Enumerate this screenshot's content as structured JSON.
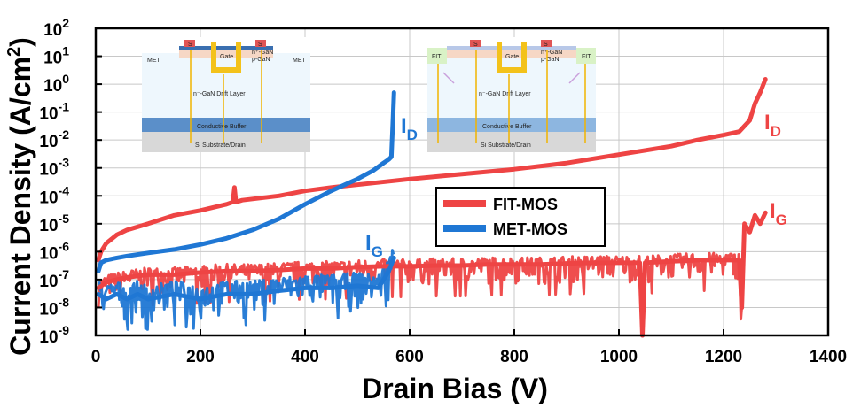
{
  "chart_data": {
    "type": "line",
    "title": "",
    "xlabel": "Drain Bias (V)",
    "ylabel_main": "Current Density (A/cm",
    "ylabel_sup": "2",
    "ylabel_close": ")",
    "xlim": [
      0,
      1400
    ],
    "ylim_log10": [
      -9,
      2
    ],
    "y_scale": "log",
    "grid": true,
    "x_ticks": [
      "0",
      "200",
      "400",
      "600",
      "800",
      "1000",
      "1200",
      "1400"
    ],
    "y_ticks": [
      {
        "base": "10",
        "exp": "-9"
      },
      {
        "base": "10",
        "exp": "-8"
      },
      {
        "base": "10",
        "exp": "-7"
      },
      {
        "base": "10",
        "exp": "-6"
      },
      {
        "base": "10",
        "exp": "-5"
      },
      {
        "base": "10",
        "exp": "-4"
      },
      {
        "base": "10",
        "exp": "-3"
      },
      {
        "base": "10",
        "exp": "-2"
      },
      {
        "base": "10",
        "exp": "-1"
      },
      {
        "base": "10",
        "exp": "0"
      },
      {
        "base": "10",
        "exp": "1"
      },
      {
        "base": "10",
        "exp": "2"
      }
    ],
    "legend": {
      "placement": "center-right",
      "entries": [
        {
          "label": "FIT-MOS",
          "color": "#ee4444"
        },
        {
          "label": "MET-MOS",
          "color": "#1f77d4"
        }
      ]
    },
    "series": [
      {
        "name": "FIT-MOS",
        "label_main": "I",
        "label_sub": "D",
        "color": "#ee4444",
        "x": [
          5,
          10,
          20,
          40,
          60,
          100,
          150,
          200,
          250,
          262,
          265,
          268,
          280,
          350,
          400,
          450,
          500,
          600,
          700,
          800,
          900,
          1000,
          1100,
          1150,
          1200,
          1230,
          1250,
          1260,
          1270,
          1280
        ],
        "y": [
          5e-07,
          1e-06,
          2e-06,
          4e-06,
          6e-06,
          1e-05,
          2e-05,
          3e-05,
          5e-05,
          6e-05,
          0.0002,
          6e-05,
          7e-05,
          0.0001,
          0.00015,
          0.0002,
          0.00025,
          0.0004,
          0.0006,
          0.0009,
          0.0015,
          0.003,
          0.006,
          0.01,
          0.015,
          0.02,
          0.05,
          0.2,
          0.5,
          1.5
        ]
      },
      {
        "name": "FIT-MOS",
        "label_main": "I",
        "label_sub": "G",
        "color": "#ee4444",
        "x": [
          5,
          20,
          40,
          60,
          100,
          150,
          200,
          250,
          300,
          350,
          400,
          450,
          500,
          550,
          600,
          650,
          700,
          750,
          800,
          850,
          900,
          950,
          1000,
          1040,
          1045,
          1050,
          1100,
          1150,
          1200,
          1230,
          1235,
          1240,
          1250,
          1260,
          1270,
          1280
        ],
        "y": [
          5e-08,
          8e-08,
          1e-07,
          1.2e-07,
          1.5e-07,
          1.5e-07,
          1.8e-07,
          2e-07,
          2e-07,
          2.2e-07,
          2.5e-07,
          2.5e-07,
          2.8e-07,
          3e-07,
          3e-07,
          3.2e-07,
          3.2e-07,
          3.5e-07,
          3.5e-07,
          3.5e-07,
          3.8e-07,
          4e-07,
          4e-07,
          4e-07,
          1e-09,
          4e-07,
          4.5e-07,
          5e-07,
          5e-07,
          5e-07,
          1e-08,
          1e-05,
          5e-06,
          2e-05,
          1e-05,
          2.5e-05
        ]
      },
      {
        "name": "MET-MOS",
        "label_main": "I",
        "label_sub": "D",
        "color": "#1f77d4",
        "x": [
          5,
          10,
          20,
          40,
          60,
          100,
          150,
          200,
          250,
          300,
          350,
          400,
          450,
          500,
          530,
          550,
          560,
          565,
          568,
          570
        ],
        "y": [
          2e-07,
          4e-07,
          5e-07,
          6e-07,
          7e-07,
          9e-07,
          1.2e-06,
          1.8e-06,
          3e-06,
          6e-06,
          1.5e-05,
          5e-05,
          0.00015,
          0.0004,
          0.0008,
          0.0015,
          0.002,
          0.0025,
          0.05,
          0.5
        ]
      },
      {
        "name": "MET-MOS",
        "label_main": "I",
        "label_sub": "G",
        "color": "#1f77d4",
        "x": [
          5,
          20,
          40,
          60,
          80,
          100,
          150,
          200,
          250,
          300,
          350,
          400,
          450,
          500,
          540,
          560,
          570
        ],
        "y": [
          3e-08,
          2e-08,
          3e-08,
          2e-08,
          3e-08,
          2e-08,
          3e-08,
          2e-08,
          3e-08,
          3e-08,
          4e-08,
          5e-08,
          5e-08,
          6e-08,
          5e-08,
          2e-07,
          6e-07
        ]
      }
    ],
    "noise_bands": [
      {
        "series_index": 1,
        "x_range": [
          5,
          1240
        ],
        "low_ratio": 0.2,
        "high_ratio": 1.8,
        "color": "#ee4444"
      },
      {
        "series_index": 3,
        "x_range": [
          5,
          570
        ],
        "low_ratio": 0.1,
        "high_ratio": 3.0,
        "color": "#1f77d4"
      }
    ]
  },
  "insets": {
    "met": {
      "label_left": "MET",
      "label_right": "MET",
      "gate": "Gate",
      "source": "S",
      "n_plus": "n⁺-GaN",
      "p_gan": "p-GaN",
      "drift": "n⁻-GaN Drift Layer",
      "buffer": "Conductive Buffer",
      "substrate": "Si Substrate/Drain"
    },
    "fit": {
      "label_left": "FIT",
      "label_right": "FIT",
      "gate": "Gate",
      "source": "S",
      "n_plus": "n⁺-GaN",
      "p_gan": "p-GaN",
      "drift": "n⁻-GaN Drift Layer",
      "buffer": "Conductive Buffer",
      "substrate": "Si Substrate/Drain"
    }
  }
}
